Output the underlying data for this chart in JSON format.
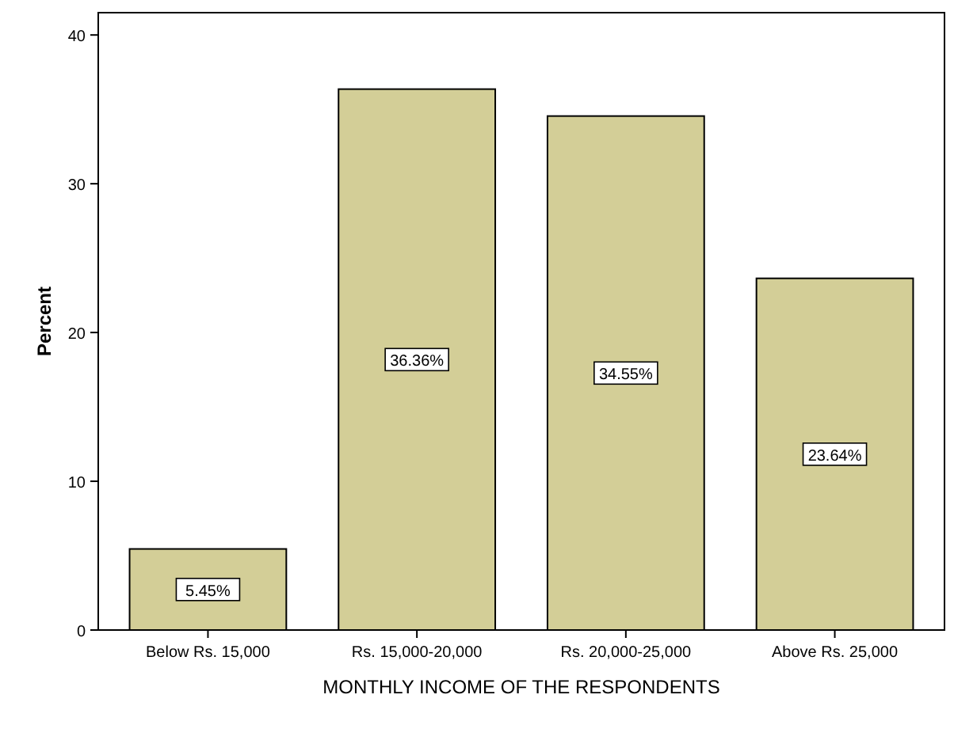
{
  "chart_data": {
    "type": "bar",
    "xlabel": "MONTHLY INCOME OF THE RESPONDENTS",
    "ylabel": "Percent",
    "categories": [
      "Below Rs. 15,000",
      "Rs. 15,000-20,000",
      "Rs. 20,000-25,000",
      "Above Rs. 25,000"
    ],
    "values": [
      5.45,
      36.36,
      34.55,
      23.64
    ],
    "value_labels": [
      "5.45%",
      "36.36%",
      "34.55%",
      "23.64%"
    ],
    "color": "#d3ce97",
    "ylim": [
      0,
      41.5
    ],
    "yticks": [
      0,
      10,
      20,
      30,
      40
    ],
    "grid": false
  }
}
